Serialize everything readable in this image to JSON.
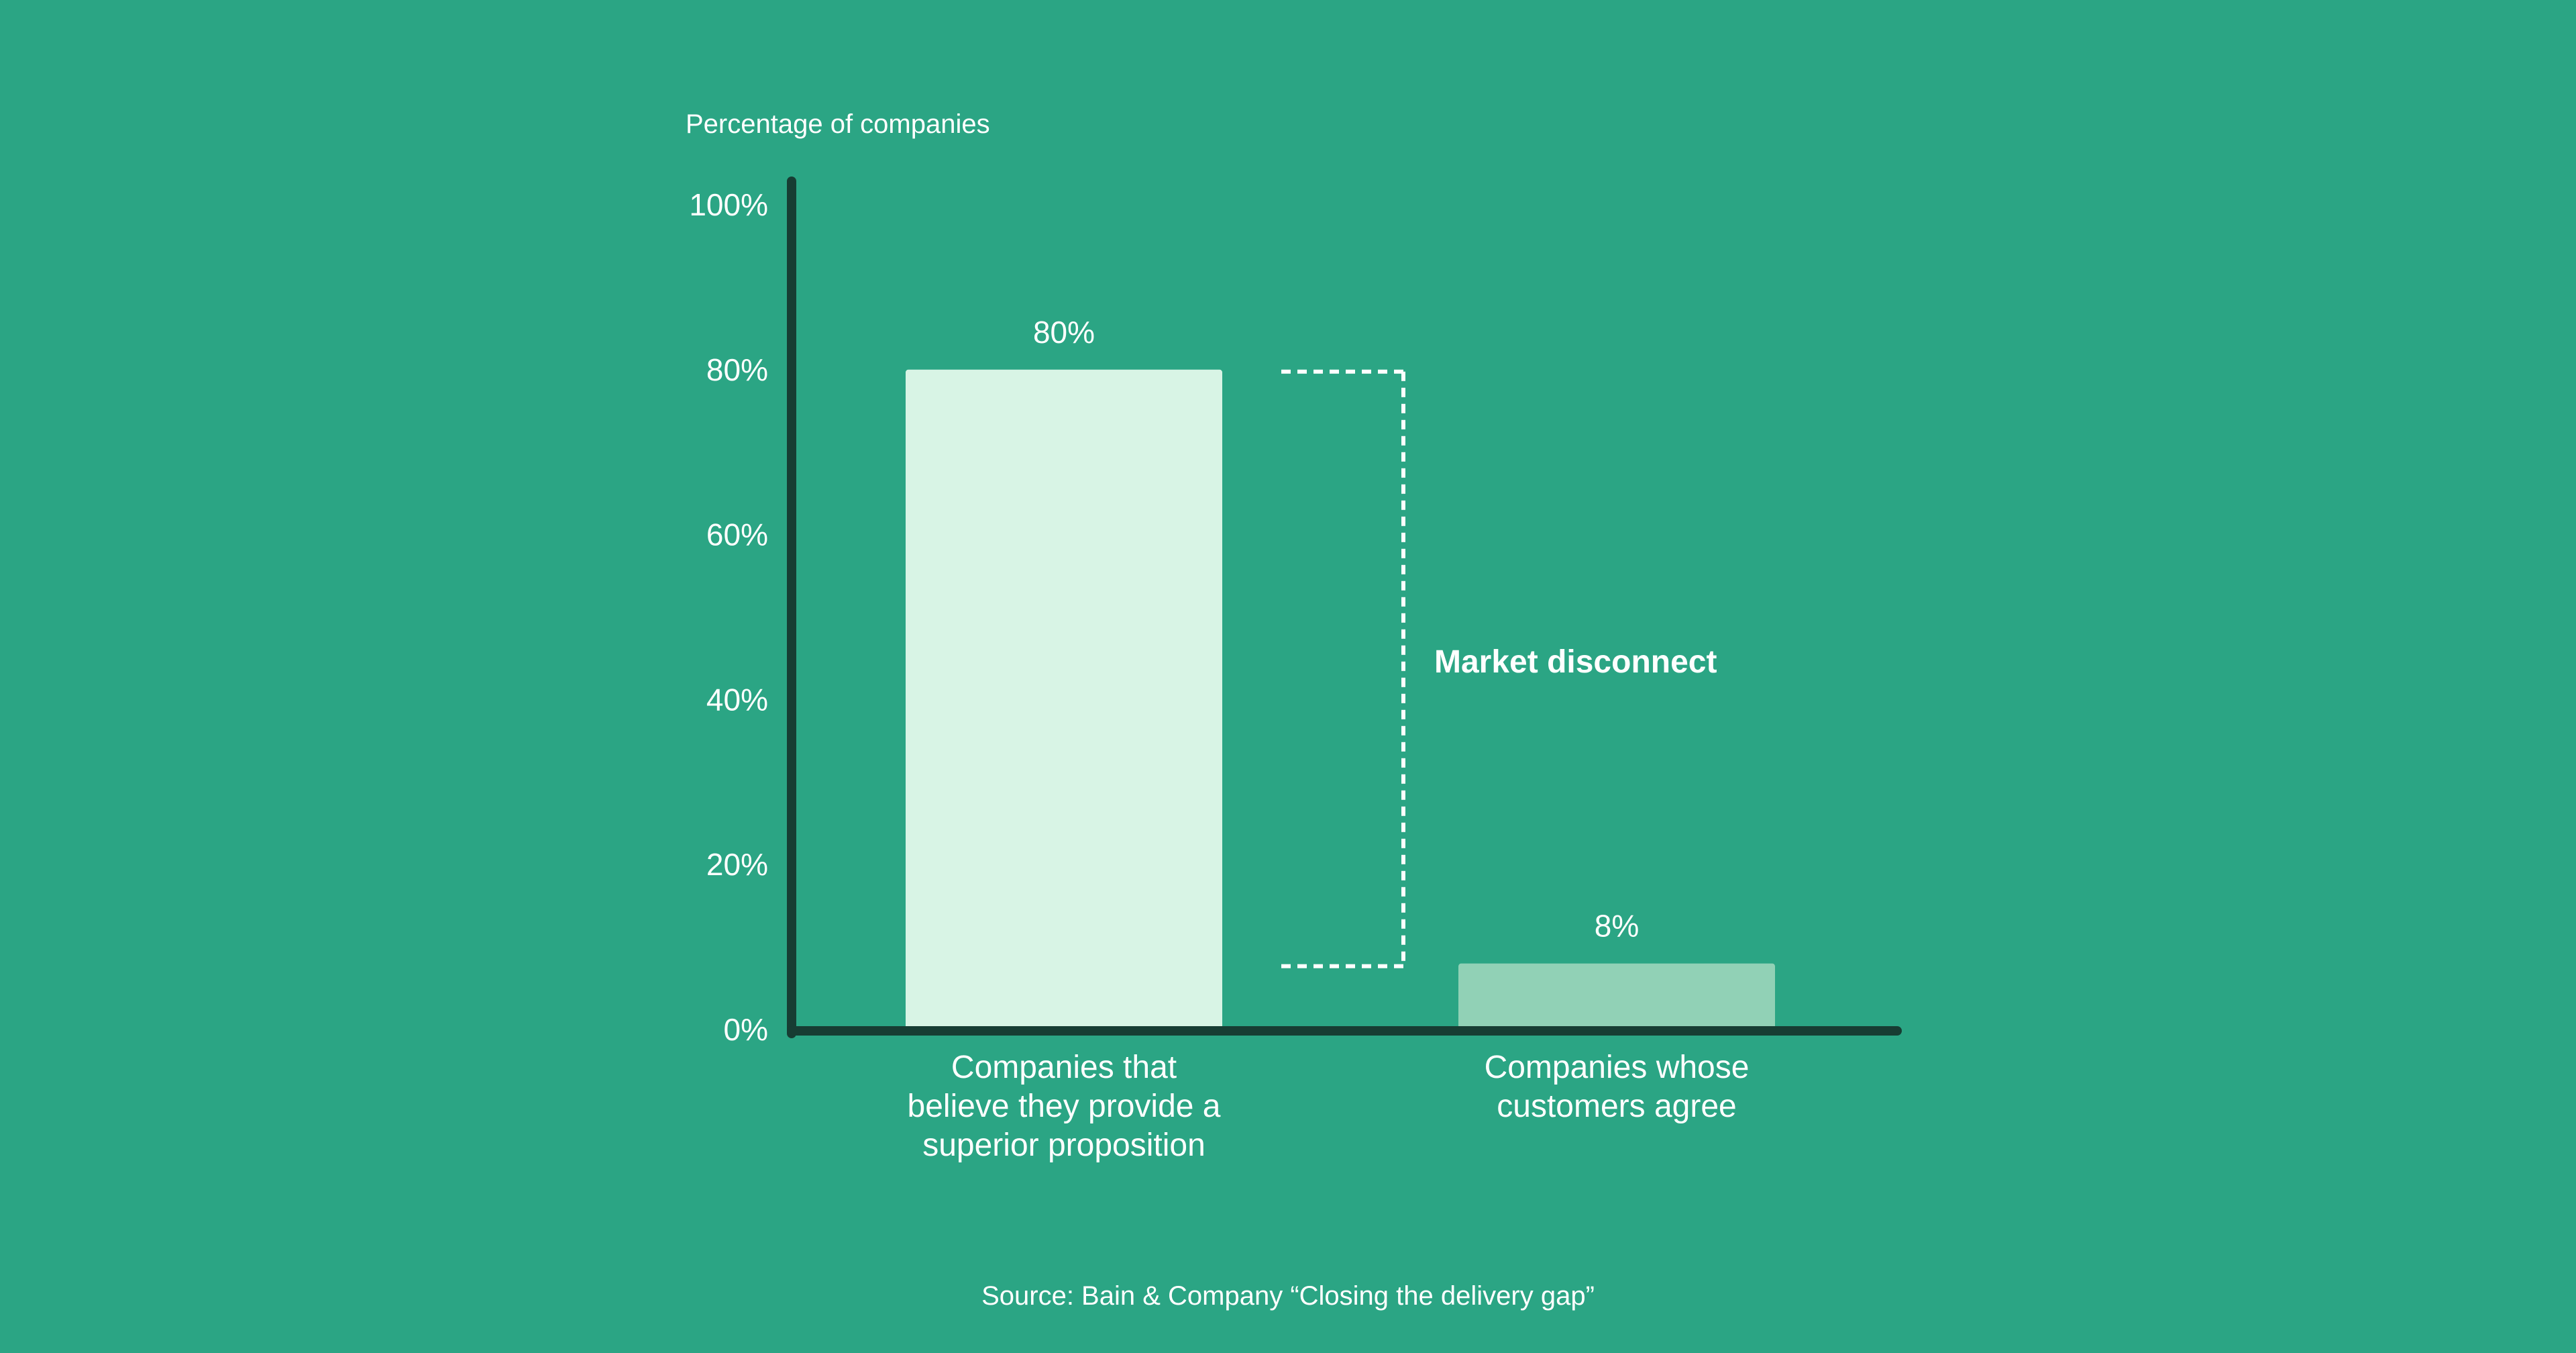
{
  "colors": {
    "background": "#2ba584",
    "axis": "#173d33",
    "text": "#ffffff",
    "bar_primary": "#d8f4e5",
    "bar_secondary": "#91d1b6",
    "bracket": "#ffffff"
  },
  "chart_data": {
    "type": "bar",
    "title": "",
    "ylabel": "Percentage of companies",
    "xlabel": "",
    "ylim": [
      0,
      100
    ],
    "yticks": [
      0,
      20,
      40,
      60,
      80,
      100
    ],
    "ytick_labels": [
      "0%",
      "20%",
      "40%",
      "60%",
      "80%",
      "100%"
    ],
    "grid": false,
    "legend": "none",
    "categories": [
      [
        "Companies that",
        "believe they provide a",
        "superior proposition"
      ],
      [
        "Companies whose",
        "customers agree"
      ]
    ],
    "values": [
      80,
      8
    ],
    "value_labels": [
      "80%",
      "8%"
    ],
    "annotation": {
      "text": "Market disconnect",
      "from": 8,
      "to": 80
    },
    "source": "Source: Bain & Company “Closing the delivery gap”"
  }
}
